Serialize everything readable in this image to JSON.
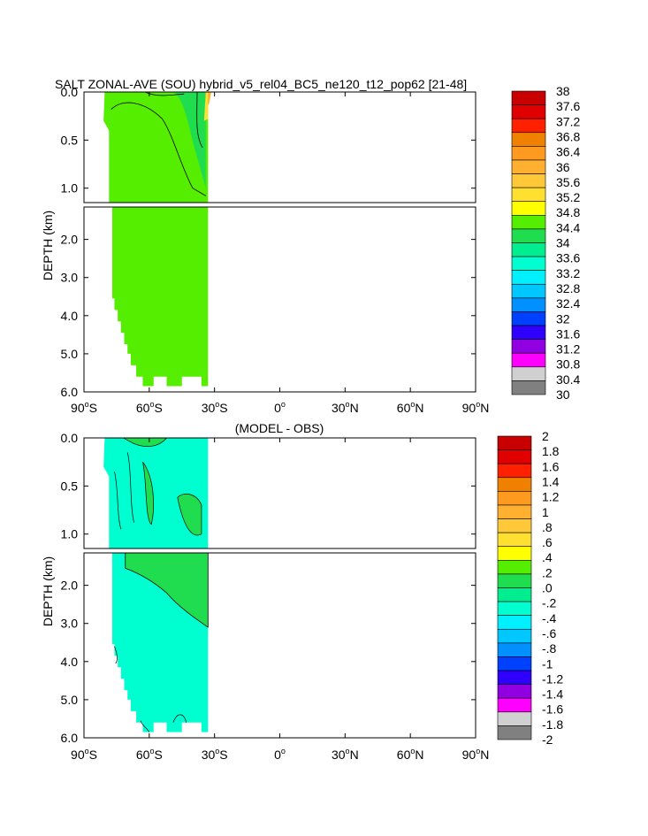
{
  "chart_data": [
    {
      "type": "heatmap",
      "title": "SALT ZONAL-AVE (SOU) hybrid_v5_rel04_BC5_ne120_t12_pop62 [21-48]",
      "ylabel": "DEPTH (km)",
      "xlim": [
        -90,
        90
      ],
      "upper_yticks": [
        "0.0",
        "0.5",
        "1.0"
      ],
      "lower_yticks": [
        "2.0",
        "3.0",
        "4.0",
        "5.0",
        "6.0"
      ],
      "xticks": [
        {
          "num": "90",
          "sup": "o",
          "hem": "S"
        },
        {
          "num": "60",
          "sup": "o",
          "hem": "S"
        },
        {
          "num": "30",
          "sup": "o",
          "hem": "S"
        },
        {
          "num": "0",
          "sup": "o",
          "hem": ""
        },
        {
          "num": "30",
          "sup": "o",
          "hem": "N"
        },
        {
          "num": "60",
          "sup": "o",
          "hem": "N"
        },
        {
          "num": "90",
          "sup": "o",
          "hem": "N"
        }
      ],
      "colorbar_labels": [
        "38",
        "37.6",
        "37.2",
        "36.8",
        "36.4",
        "36",
        "35.6",
        "35.2",
        "34.8",
        "34.4",
        "34",
        "33.6",
        "33.2",
        "32.8",
        "32.4",
        "32",
        "31.6",
        "31.2",
        "30.8",
        "30.4",
        "30"
      ],
      "colorbar_colors": [
        "#c80000",
        "#e00000",
        "#ff2000",
        "#f08000",
        "#ff9a20",
        "#ffb030",
        "#ffc838",
        "#ffe030",
        "#ffff00",
        "#55ee00",
        "#20dd50",
        "#00ee90",
        "#00ffd0",
        "#00f0ff",
        "#00c8ff",
        "#0090ff",
        "#0040ff",
        "#3000ff",
        "#9000e0",
        "#ff00ff",
        "#d0d0d0",
        "#808080"
      ],
      "fill_color": "#55ee00",
      "data_extent_lat": [
        -78,
        -33
      ],
      "contours": [
        34.4,
        34.8
      ],
      "notes": "Southern Ocean zonal-average salinity, mostly 34.4-34.8 psu; saltier (35.2-35.6) near 33S surface"
    },
    {
      "type": "heatmap",
      "title": "(MODEL - OBS)",
      "ylabel": "DEPTH (km)",
      "xlim": [
        -90,
        90
      ],
      "upper_yticks": [
        "0.0",
        "0.5",
        "1.0"
      ],
      "lower_yticks": [
        "2.0",
        "3.0",
        "4.0",
        "5.0",
        "6.0"
      ],
      "xticks": [
        {
          "num": "90",
          "sup": "o",
          "hem": "S"
        },
        {
          "num": "60",
          "sup": "o",
          "hem": "S"
        },
        {
          "num": "30",
          "sup": "o",
          "hem": "S"
        },
        {
          "num": "0",
          "sup": "o",
          "hem": ""
        },
        {
          "num": "30",
          "sup": "o",
          "hem": "N"
        },
        {
          "num": "60",
          "sup": "o",
          "hem": "N"
        },
        {
          "num": "90",
          "sup": "o",
          "hem": "N"
        }
      ],
      "colorbar_labels": [
        "2",
        "1.8",
        "1.6",
        "1.4",
        "1.2",
        "1",
        ".8",
        ".6",
        ".4",
        ".2",
        ".0",
        "-.2",
        "-.4",
        "-.6",
        "-.8",
        "-1",
        "-1.2",
        "-1.4",
        "-1.6",
        "-1.8",
        "-2"
      ],
      "colorbar_colors": [
        "#c80000",
        "#e00000",
        "#ff2000",
        "#f08000",
        "#ff9a20",
        "#ffb030",
        "#ffc838",
        "#ffe030",
        "#ffff00",
        "#55ee00",
        "#20dd50",
        "#00ee90",
        "#00ffd0",
        "#00f0ff",
        "#00c8ff",
        "#0090ff",
        "#0040ff",
        "#3000ff",
        "#9000e0",
        "#ff00ff",
        "#d0d0d0",
        "#808080"
      ],
      "fill_color": "#00ffd0",
      "secondary_color": "#20dd50",
      "data_extent_lat": [
        -78,
        -33
      ],
      "contours": [
        -0.2,
        0.0,
        0.2
      ],
      "notes": "Model minus observations, mostly -0.2 to 0.0 with patches of 0.0 to 0.2"
    }
  ]
}
